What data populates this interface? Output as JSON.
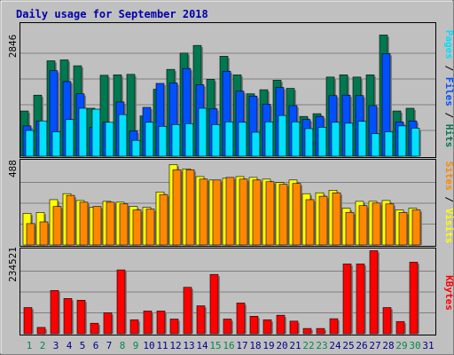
{
  "title": "Daily usage for September 2018",
  "colors": {
    "background": "#c0c0c0",
    "panel": "#c0c0c0",
    "title": "#0000aa",
    "hits": "#007850",
    "files": "#0050ff",
    "pages": "#00e0ff",
    "visits": "#ffff00",
    "sites": "#ff8800",
    "kbytes": "#ff0000",
    "weekend_day": "#00884c",
    "weekday_day": "#000088"
  },
  "chart_data": [
    {
      "type": "bar",
      "panel": "top",
      "categories": [
        "1",
        "2",
        "3",
        "4",
        "5",
        "6",
        "7",
        "8",
        "9",
        "10",
        "11",
        "12",
        "13",
        "14",
        "15",
        "16",
        "17",
        "18",
        "19",
        "20",
        "21",
        "22",
        "23",
        "24",
        "25",
        "26",
        "27",
        "28",
        "29",
        "30",
        "31"
      ],
      "weekend_days": [
        1,
        2,
        8,
        9,
        15,
        16,
        22,
        23,
        29,
        30
      ],
      "ymax_label": "2846",
      "ylim": [
        0,
        2846
      ],
      "series": [
        {
          "name": "Hits",
          "values": [
            1000,
            1350,
            2110,
            2130,
            2000,
            1060,
            1790,
            1800,
            1810,
            890,
            1480,
            1920,
            2280,
            2450,
            1700,
            2210,
            1800,
            1380,
            1470,
            1680,
            1500,
            880,
            940,
            1750,
            1800,
            1750,
            1800,
            2680,
            1000,
            1060,
            0
          ]
        },
        {
          "name": "Files",
          "values": [
            670,
            780,
            1890,
            1650,
            1380,
            640,
            750,
            1200,
            560,
            1080,
            1610,
            1620,
            1940,
            1580,
            1050,
            1880,
            1440,
            1330,
            1150,
            1520,
            1120,
            810,
            880,
            1340,
            1350,
            1340,
            1120,
            2270,
            760,
            780,
            0
          ]
        },
        {
          "name": "Pages",
          "values": [
            570,
            780,
            540,
            810,
            1060,
            1040,
            750,
            920,
            350,
            750,
            660,
            700,
            720,
            1060,
            700,
            760,
            750,
            530,
            760,
            900,
            760,
            610,
            640,
            750,
            730,
            770,
            500,
            540,
            670,
            620,
            0
          ]
        }
      ],
      "legend": [
        "Pages",
        "Files",
        "Hits"
      ]
    },
    {
      "type": "bar",
      "panel": "middle",
      "categories": [
        "1",
        "2",
        "3",
        "4",
        "5",
        "6",
        "7",
        "8",
        "9",
        "10",
        "11",
        "12",
        "13",
        "14",
        "15",
        "16",
        "17",
        "18",
        "19",
        "20",
        "21",
        "22",
        "23",
        "24",
        "25",
        "26",
        "27",
        "28",
        "29",
        "30",
        "31"
      ],
      "ymax_label": "488",
      "ylim": [
        0,
        488
      ],
      "series": [
        {
          "name": "Visits",
          "values": [
            185,
            190,
            265,
            300,
            260,
            220,
            255,
            250,
            225,
            220,
            310,
            470,
            445,
            400,
            380,
            390,
            400,
            395,
            385,
            365,
            380,
            300,
            305,
            320,
            215,
            255,
            255,
            260,
            205,
            215,
            0
          ]
        },
        {
          "name": "Sites",
          "values": [
            125,
            135,
            225,
            290,
            250,
            225,
            250,
            240,
            205,
            210,
            295,
            440,
            440,
            385,
            380,
            395,
            385,
            380,
            370,
            355,
            360,
            265,
            285,
            305,
            190,
            230,
            245,
            240,
            190,
            205,
            0
          ]
        }
      ],
      "legend": [
        "Sites",
        "Visits"
      ]
    },
    {
      "type": "bar",
      "panel": "bottom",
      "categories": [
        "1",
        "2",
        "3",
        "4",
        "5",
        "6",
        "7",
        "8",
        "9",
        "10",
        "11",
        "12",
        "13",
        "14",
        "15",
        "16",
        "17",
        "18",
        "19",
        "20",
        "21",
        "22",
        "23",
        "24",
        "25",
        "26",
        "27",
        "28",
        "29",
        "30",
        "31"
      ],
      "ymax_label": "234521",
      "ylim": [
        0,
        234521
      ],
      "series": [
        {
          "name": "KBytes",
          "values": [
            75000,
            18000,
            124000,
            101000,
            96000,
            30000,
            60000,
            183000,
            40000,
            65000,
            65000,
            42000,
            133000,
            80000,
            170000,
            42000,
            88000,
            50000,
            40000,
            53000,
            36000,
            15000,
            15000,
            43000,
            200000,
            200000,
            238000,
            75000,
            35000,
            205000,
            0
          ]
        }
      ],
      "legend": [
        "KBytes"
      ]
    }
  ]
}
